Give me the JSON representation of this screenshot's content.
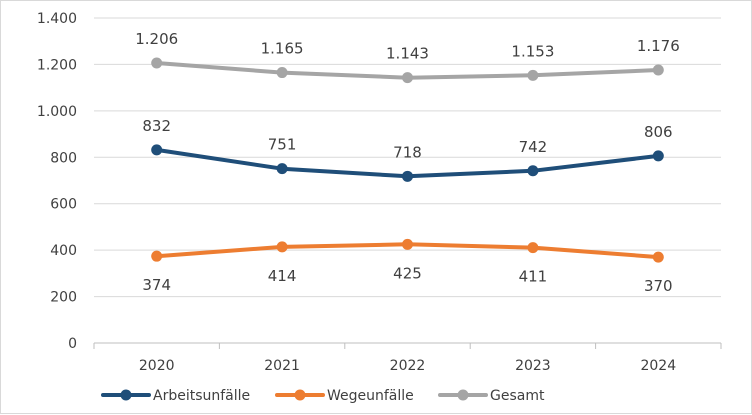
{
  "chart_data": {
    "type": "line",
    "categories": [
      "2020",
      "2021",
      "2022",
      "2023",
      "2024"
    ],
    "ylim": [
      0,
      1400
    ],
    "yticks": [
      0,
      200,
      400,
      600,
      800,
      1000,
      1200,
      1400
    ],
    "ytick_labels": [
      "0",
      "200",
      "400",
      "600",
      "800",
      "1.000",
      "1.200",
      "1.400"
    ],
    "grid": "horizontal",
    "legend_position": "bottom",
    "series": [
      {
        "name": "Arbeitsunfälle",
        "values": [
          832,
          751,
          718,
          742,
          806
        ],
        "labels": [
          "832",
          "751",
          "718",
          "742",
          "806"
        ],
        "label_position": "above",
        "color": "#1f4e79"
      },
      {
        "name": "Wegeunfälle",
        "values": [
          374,
          414,
          425,
          411,
          370
        ],
        "labels": [
          "374",
          "414",
          "425",
          "411",
          "370"
        ],
        "label_position": "below",
        "color": "#ed7d31"
      },
      {
        "name": "Gesamt",
        "values": [
          1206,
          1165,
          1143,
          1153,
          1176
        ],
        "labels": [
          "1.206",
          "1.165",
          "1.143",
          "1.153",
          "1.176"
        ],
        "label_position": "above",
        "color": "#a5a5a5"
      }
    ]
  }
}
